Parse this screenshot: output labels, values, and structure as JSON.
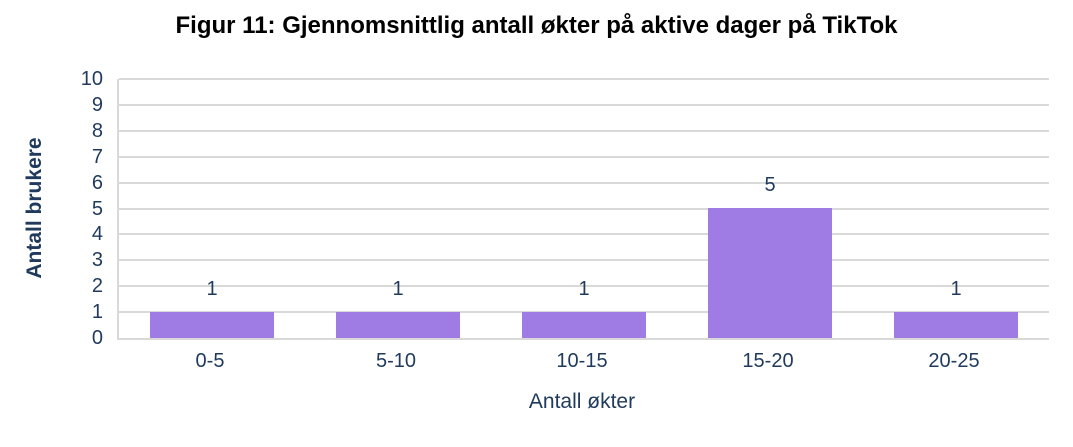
{
  "chart_data": {
    "type": "bar",
    "title": "Figur 11: Gjennomsnittlig antall økter på aktive dager på TikTok",
    "categories": [
      "0-5",
      "5-10",
      "10-15",
      "15-20",
      "20-25"
    ],
    "values": [
      1,
      1,
      1,
      5,
      1
    ],
    "data_labels": [
      "1",
      "1",
      "1",
      "5",
      "1"
    ],
    "xlabel": "Antall økter",
    "ylabel": "Antall brukere",
    "ylim": [
      0,
      10
    ],
    "ytick_step": 1,
    "ytick_labels": [
      "0",
      "1",
      "2",
      "3",
      "4",
      "5",
      "6",
      "7",
      "8",
      "9",
      "10"
    ],
    "grid": "horizontal",
    "legend": "none",
    "colors": {
      "bar": "#9e7ce3",
      "grid": "#d9d9d9",
      "text": "#1f3a5c",
      "title": "#000000",
      "background": "#ffffff"
    }
  }
}
